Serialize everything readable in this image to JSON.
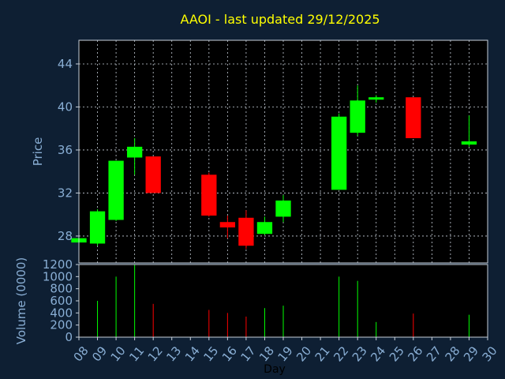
{
  "chart_data": {
    "type": "candlestick",
    "title": "AAOI - last updated 29/12/2025",
    "xlabel": "Day",
    "price_panel": {
      "ylabel": "Price",
      "ylim": [
        25.5,
        46.2
      ],
      "yticks": [
        28,
        32,
        36,
        40,
        44
      ],
      "grid": true
    },
    "volume_panel": {
      "ylabel": "Volume (0000)",
      "ylim": [
        0,
        1200
      ],
      "yticks": [
        0,
        200,
        400,
        600,
        800,
        1000,
        1200
      ],
      "grid": false
    },
    "xlim": [
      8,
      30
    ],
    "xticks": [
      "08",
      "09",
      "10",
      "11",
      "12",
      "13",
      "14",
      "15",
      "16",
      "17",
      "18",
      "19",
      "20",
      "21",
      "22",
      "23",
      "24",
      "25",
      "26",
      "27",
      "28",
      "29",
      "30"
    ],
    "colors": {
      "up": "#00ff00",
      "down": "#ff0000",
      "background": "#0e1f33",
      "plot_background": "#000000"
    },
    "candles": [
      {
        "day": 8,
        "open": 27.4,
        "high": 27.9,
        "low": 27.2,
        "close": 27.8,
        "volume": 0
      },
      {
        "day": 9,
        "open": 27.3,
        "high": 30.5,
        "low": 27.1,
        "close": 30.3,
        "volume": 600
      },
      {
        "day": 10,
        "open": 29.5,
        "high": 35.0,
        "low": 29.4,
        "close": 35.0,
        "volume": 1000
      },
      {
        "day": 11,
        "open": 35.3,
        "high": 37.1,
        "low": 33.7,
        "close": 36.3,
        "volume": 1200
      },
      {
        "day": 12,
        "open": 35.4,
        "high": 35.4,
        "low": 32.0,
        "close": 32.0,
        "volume": 550
      },
      {
        "day": 15,
        "open": 33.7,
        "high": 33.9,
        "low": 29.8,
        "close": 29.9,
        "volume": 450
      },
      {
        "day": 16,
        "open": 29.3,
        "high": 29.9,
        "low": 27.8,
        "close": 28.8,
        "volume": 400
      },
      {
        "day": 17,
        "open": 29.7,
        "high": 30.4,
        "low": 26.8,
        "close": 27.1,
        "volume": 340
      },
      {
        "day": 18,
        "open": 28.2,
        "high": 29.8,
        "low": 28.1,
        "close": 29.3,
        "volume": 480
      },
      {
        "day": 19,
        "open": 29.8,
        "high": 31.8,
        "low": 29.3,
        "close": 31.3,
        "volume": 520
      },
      {
        "day": 22,
        "open": 32.3,
        "high": 39.4,
        "low": 32.3,
        "close": 39.1,
        "volume": 1000
      },
      {
        "day": 23,
        "open": 37.6,
        "high": 42.0,
        "low": 37.3,
        "close": 40.6,
        "volume": 930
      },
      {
        "day": 24,
        "open": 40.7,
        "high": 41.1,
        "low": 40.4,
        "close": 40.9,
        "volume": 250
      },
      {
        "day": 26,
        "open": 40.9,
        "high": 40.9,
        "low": 37.1,
        "close": 37.1,
        "volume": 390
      },
      {
        "day": 29,
        "open": 36.5,
        "high": 39.2,
        "low": 36.3,
        "close": 36.8,
        "volume": 370
      }
    ]
  }
}
